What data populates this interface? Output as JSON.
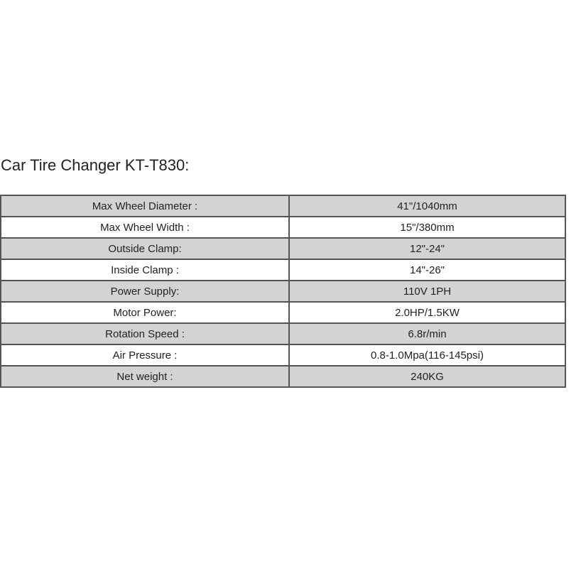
{
  "title": "Car Tire Changer KT-T830:",
  "specs": [
    {
      "label": "Max Wheel Diameter :",
      "value": "41\"/1040mm"
    },
    {
      "label": "Max Wheel Width :",
      "value": "15\"/380mm"
    },
    {
      "label": "Outside Clamp:",
      "value": "12\"-24\""
    },
    {
      "label": "Inside Clamp :",
      "value": "14\"-26\""
    },
    {
      "label": "Power Supply:",
      "value": "110V 1PH"
    },
    {
      "label": "Motor Power:",
      "value": "2.0HP/1.5KW"
    },
    {
      "label": "Rotation Speed :",
      "value": "6.8r/min"
    },
    {
      "label": "Air Pressure :",
      "value": "0.8-1.0Mpa(116-145psi)"
    },
    {
      "label": "Net weight :",
      "value": "240KG"
    }
  ],
  "colors": {
    "shaded_row": "#d3d3d3",
    "border": "#555555"
  }
}
